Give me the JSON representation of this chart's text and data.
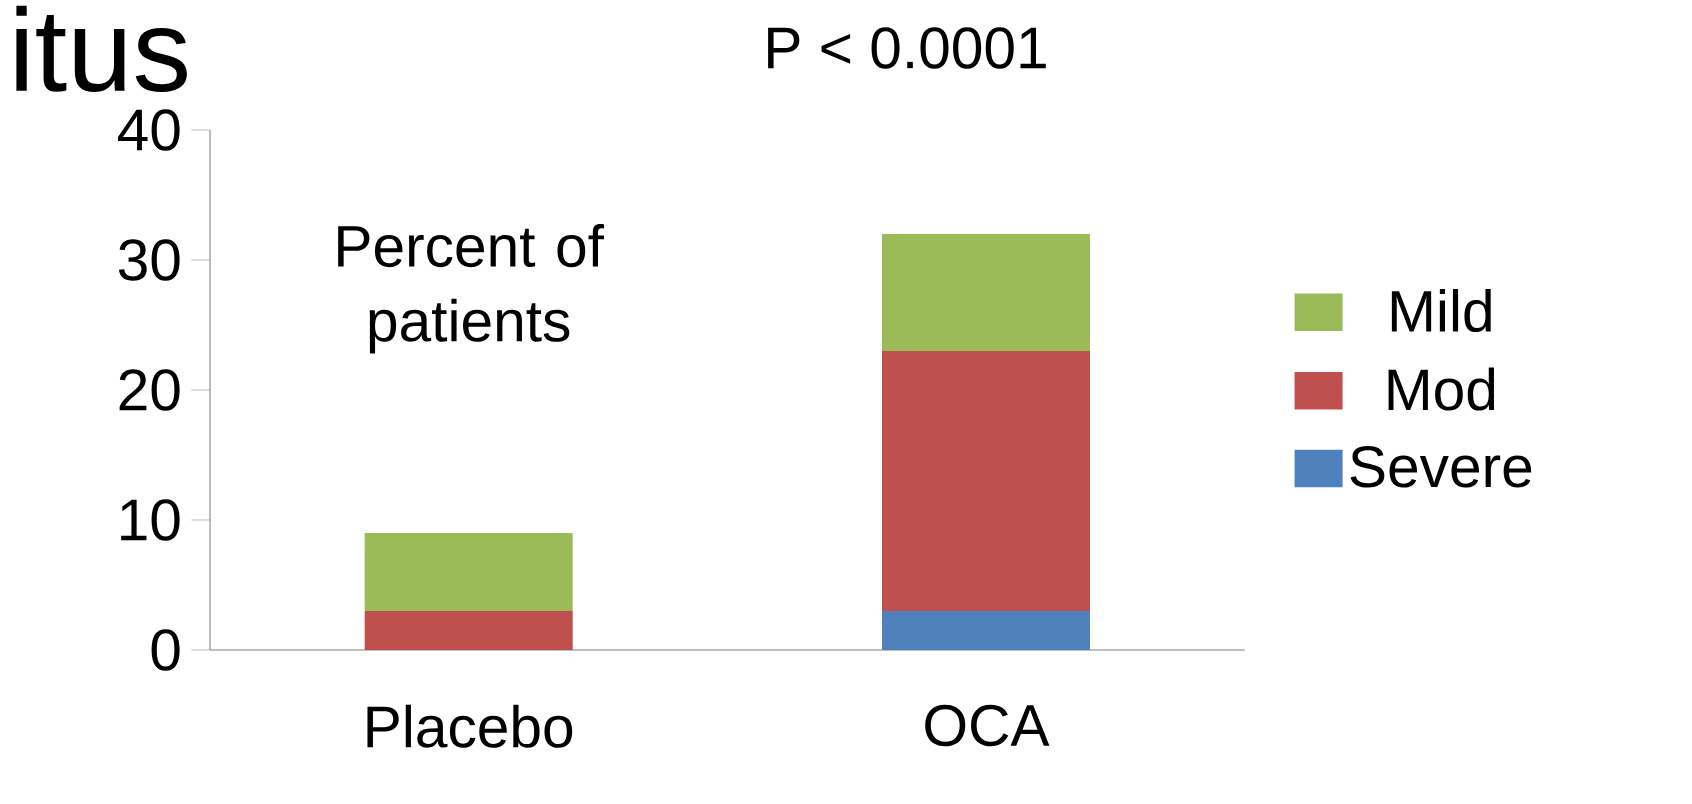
{
  "chart_data": {
    "type": "bar",
    "stacked": true,
    "title": "itus",
    "categories": [
      "Placebo",
      "OCA"
    ],
    "series": [
      {
        "name": "Severe",
        "color": "#4f81bd",
        "values": [
          0,
          3
        ]
      },
      {
        "name": "Mod",
        "color": "#c0504d",
        "values": [
          3,
          20
        ]
      },
      {
        "name": "Mild",
        "color": "#9bbb59",
        "values": [
          6,
          9
        ]
      }
    ],
    "ylim": [
      0,
      40
    ],
    "yticks": [
      0,
      10,
      20,
      30,
      40
    ],
    "legend": "right",
    "annotations": [
      "P < 0.0001",
      "Percent of patients"
    ]
  }
}
